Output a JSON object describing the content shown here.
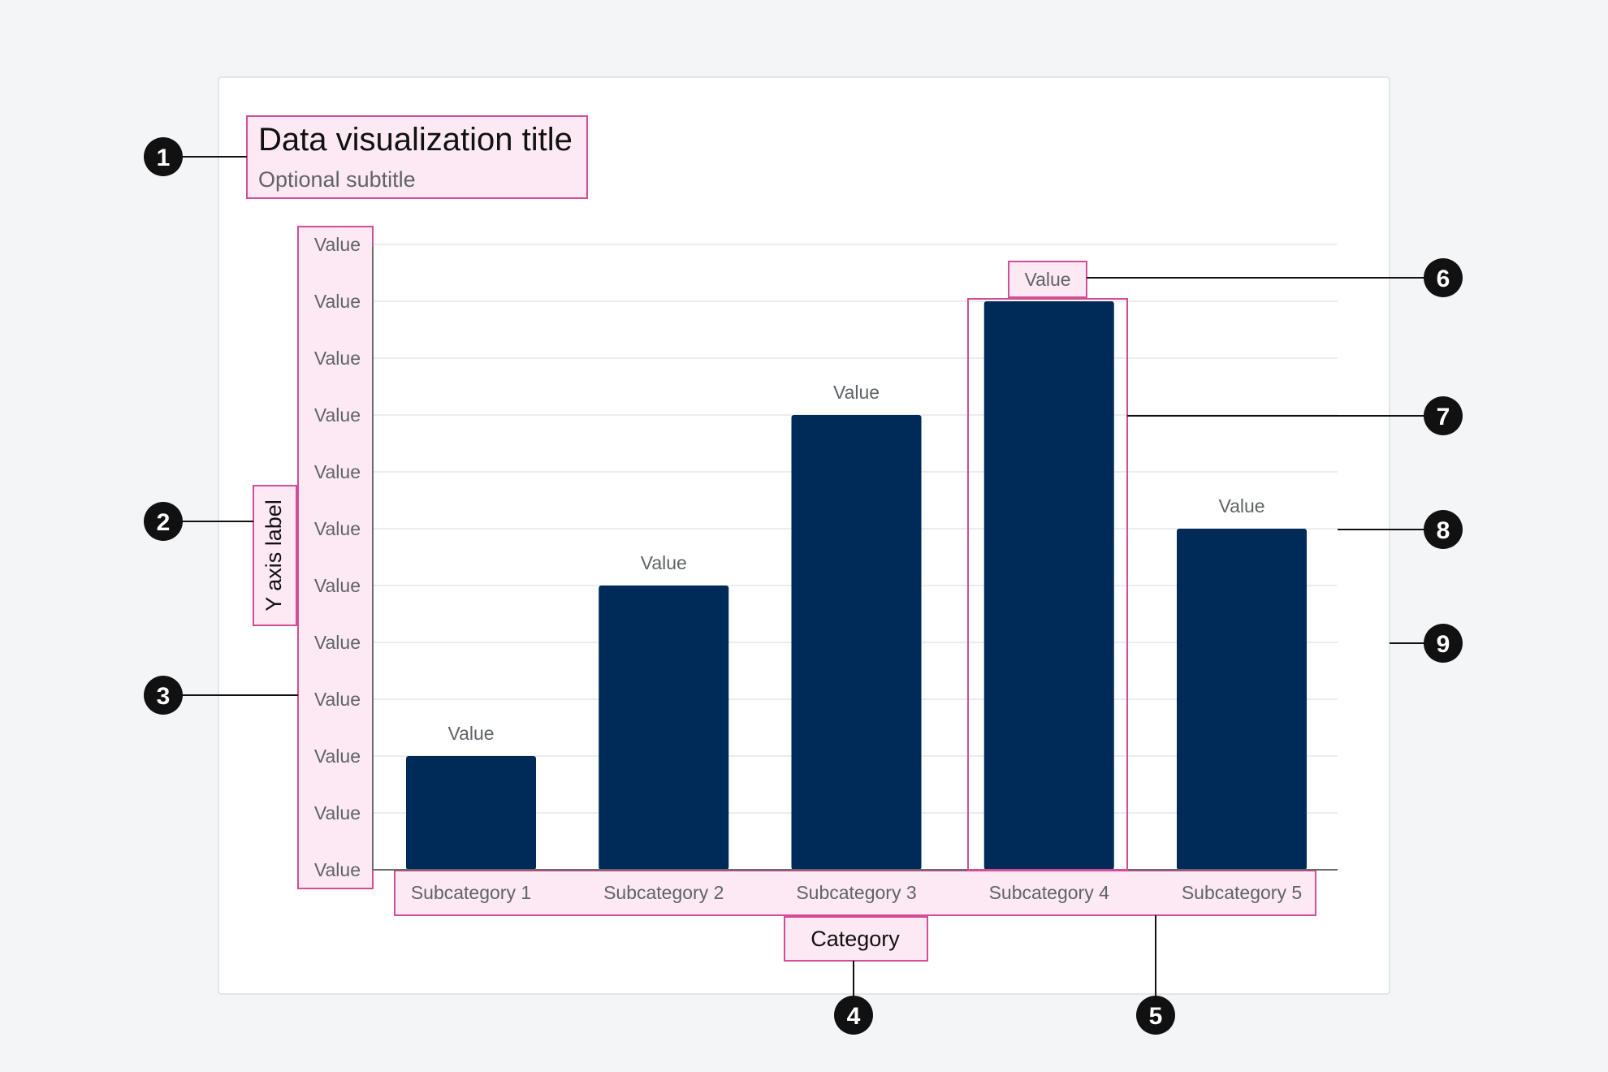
{
  "title": "Data visualization title",
  "subtitle": "Optional subtitle",
  "callouts": [
    "1",
    "2",
    "3",
    "4",
    "5",
    "6",
    "7",
    "8",
    "9"
  ],
  "colors": {
    "bar": "#002b59",
    "highlight_fill": "#fde9f3",
    "highlight_stroke": "#d14d94"
  },
  "chart_data": {
    "type": "bar",
    "title": "Data visualization title",
    "subtitle": "Optional subtitle",
    "xlabel": "Category",
    "ylabel": "Y axis label",
    "categories": [
      "Subcategory 1",
      "Subcategory 2",
      "Subcategory 3",
      "Subcategory 4",
      "Subcategory 5"
    ],
    "values": [
      2,
      5,
      8,
      10,
      6
    ],
    "value_labels": [
      "Value",
      "Value",
      "Value",
      "Value",
      "Value"
    ],
    "y_tick_labels": [
      "Value",
      "Value",
      "Value",
      "Value",
      "Value",
      "Value",
      "Value",
      "Value",
      "Value",
      "Value",
      "Value",
      "Value"
    ],
    "ylim": [
      0,
      11
    ],
    "grid": true
  }
}
